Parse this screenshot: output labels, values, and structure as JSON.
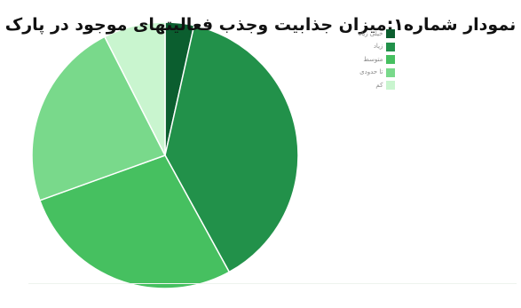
{
  "chart_data": {
    "type": "pie",
    "title": "نمودار شماره۱:میزان جذابیت وجذب فعالیتهای موجود در پارک",
    "categories": [
      "خیلی زیاد",
      "زیاد",
      "متوسط",
      "تا حدودی",
      "کم"
    ],
    "values": [
      3.5,
      38.5,
      27.5,
      23,
      7.5
    ],
    "colors": [
      "#0b5e2f",
      "#22914a",
      "#46c060",
      "#79d98b",
      "#c9f5cf"
    ],
    "legend_position": "top-right",
    "start_angle_deg": 0,
    "direction": "clockwise"
  }
}
